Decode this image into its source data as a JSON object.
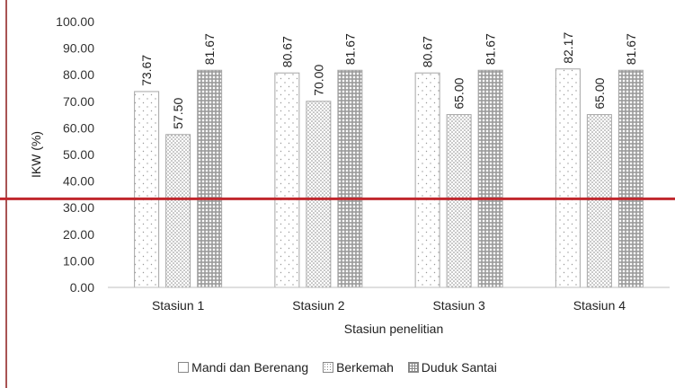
{
  "chart_data": {
    "type": "bar",
    "categories": [
      "Stasiun 1",
      "Stasiun 2",
      "Stasiun 3",
      "Stasiun 4"
    ],
    "series": [
      {
        "name": "Mandi dan Berenang",
        "values": [
          73.67,
          80.67,
          80.67,
          82.17
        ],
        "labels": [
          "73.67",
          "80.67",
          "80.67",
          "82.17"
        ],
        "pattern": "sparse-dots"
      },
      {
        "name": "Berkemah",
        "values": [
          57.5,
          70.0,
          65.0,
          65.0
        ],
        "labels": [
          "57.50",
          "70.00",
          "65.00",
          "65.00"
        ],
        "pattern": "dense-dots"
      },
      {
        "name": "Duduk Santai",
        "values": [
          81.67,
          81.67,
          81.67,
          81.67
        ],
        "labels": [
          "81.67",
          "81.67",
          "81.67",
          "81.67"
        ],
        "pattern": "grid"
      }
    ],
    "xlabel": "Stasiun penelitian",
    "ylabel": "IKW (%)",
    "ylim": [
      0,
      100
    ],
    "yticks": [
      "0.00",
      "10.00",
      "20.00",
      "30.00",
      "40.00",
      "50.00",
      "60.00",
      "70.00",
      "80.00",
      "90.00",
      "100.00"
    ],
    "grid": false,
    "legend": "bottom",
    "reference_line": {
      "value": 33.3,
      "color": "#c0272d"
    },
    "colors": {
      "bar_border": "#a6a6a6",
      "axis": "#bfbfbf",
      "reference": "#c0272d",
      "left_rule": "#8b1a1a"
    }
  }
}
